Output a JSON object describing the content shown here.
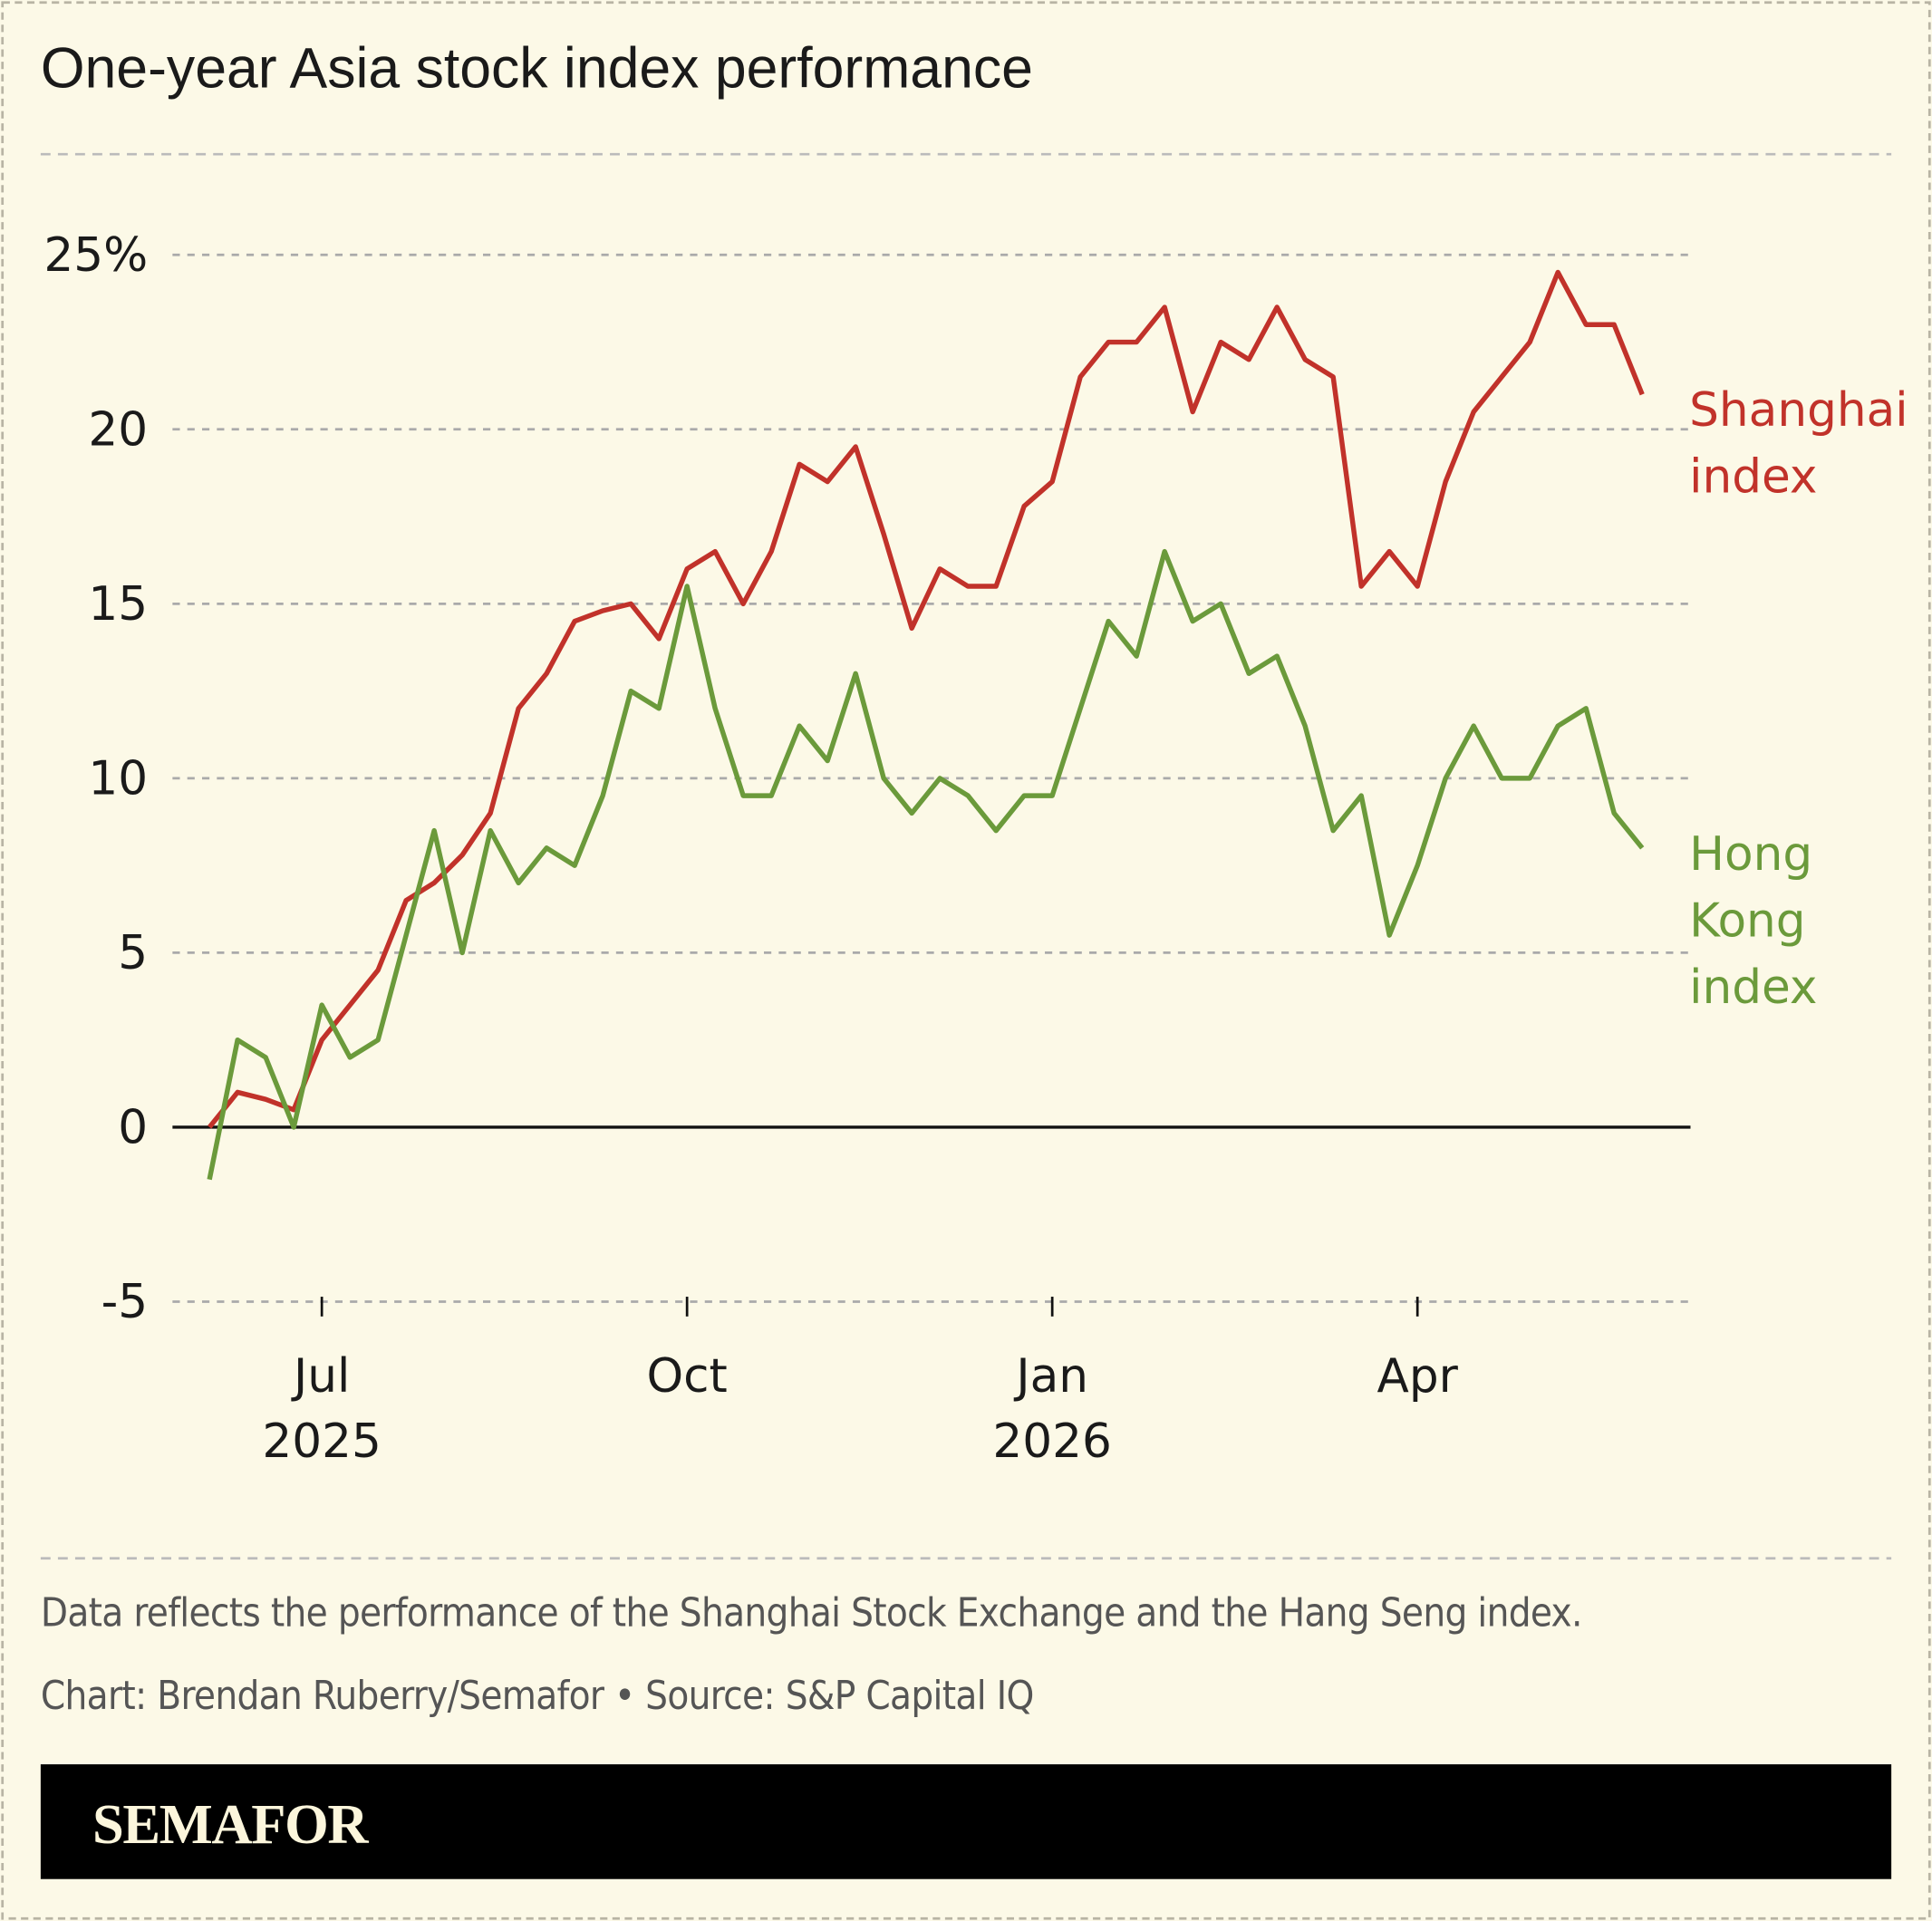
{
  "chart_data": {
    "type": "line",
    "title": "One-year Asia stock index performance",
    "note": "Data reflects the performance of the Shanghai Stock Exchange and the Hang Seng index.",
    "credit": "Chart: Brendan Ruberry/Semafor • Source: S&P Capital IQ",
    "brand": "SEMAFOR",
    "categories": [
      null,
      null,
      null,
      null,
      "Jul",
      null,
      null,
      null,
      null,
      null,
      null,
      null,
      null,
      null,
      null,
      null,
      null,
      "Oct",
      null,
      null,
      null,
      null,
      null,
      null,
      null,
      null,
      null,
      null,
      null,
      null,
      "Jan",
      null,
      null,
      null,
      null,
      null,
      null,
      null,
      null,
      null,
      null,
      null,
      null,
      "Apr",
      null,
      null,
      null,
      null,
      null,
      null,
      null,
      null
    ],
    "category_years": [
      null,
      null,
      null,
      null,
      "2025",
      null,
      null,
      null,
      null,
      null,
      null,
      null,
      null,
      null,
      null,
      null,
      null,
      null,
      null,
      null,
      null,
      null,
      null,
      null,
      null,
      null,
      null,
      null,
      null,
      null,
      "2026",
      null,
      null,
      null,
      null,
      null,
      null,
      null,
      null,
      null,
      null,
      null,
      null,
      null,
      null,
      null,
      null,
      null,
      null,
      null,
      null,
      null
    ],
    "series": [
      {
        "name": "Shanghai index",
        "color": "#c1322a",
        "values": [
          0,
          1.0,
          0.8,
          0.5,
          2.5,
          3.5,
          4.5,
          6.5,
          7.0,
          7.8,
          9.0,
          12.0,
          13.0,
          14.5,
          14.8,
          15.0,
          14.0,
          16.0,
          16.5,
          15.0,
          16.5,
          19.0,
          18.5,
          19.5,
          17.0,
          14.3,
          16.0,
          15.5,
          15.5,
          17.8,
          18.5,
          21.5,
          22.5,
          22.5,
          23.5,
          20.5,
          22.5,
          22.0,
          23.5,
          22.0,
          21.5,
          15.5,
          16.5,
          15.5,
          18.5,
          20.5,
          21.5,
          22.5,
          24.5,
          23.0,
          23.0,
          21.0
        ]
      },
      {
        "name": "Hong Kong index",
        "color": "#6b9a3b",
        "values": [
          -1.5,
          2.5,
          2.0,
          0,
          3.5,
          2.0,
          2.5,
          5.5,
          8.5,
          5.0,
          8.5,
          7.0,
          8.0,
          7.5,
          9.5,
          12.5,
          12.0,
          15.5,
          12.0,
          9.5,
          9.5,
          11.5,
          10.5,
          13.0,
          10.0,
          9.0,
          10.0,
          9.5,
          8.5,
          9.5,
          9.5,
          12.0,
          14.5,
          13.5,
          16.5,
          14.5,
          15.0,
          13.0,
          13.5,
          11.5,
          8.5,
          9.5,
          5.5,
          7.5,
          10.0,
          11.5,
          10.0,
          10.0,
          11.5,
          12.0,
          9.0,
          8.0
        ]
      }
    ],
    "ylim": [
      -5,
      27
    ],
    "yticks": [
      -5,
      0,
      5,
      10,
      15,
      20,
      {
        "value": 25,
        "label": "25%"
      }
    ],
    "grid": true
  }
}
